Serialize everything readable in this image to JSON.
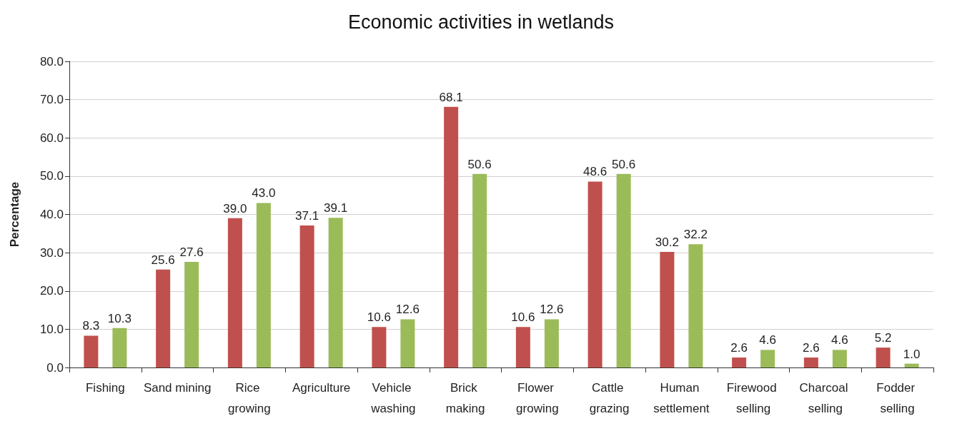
{
  "chart_data": {
    "type": "bar",
    "title": "Economic activities in wetlands",
    "ylabel": "Percentage",
    "categories": [
      "Fishing",
      "Sand mining",
      "Rice growing",
      "Agriculture",
      "Vehicle washing",
      "Brick making",
      "Flower growing",
      "Cattle grazing",
      "Human settlement",
      "Firewood selling",
      "Charcoal selling",
      "Fodder selling"
    ],
    "series": [
      {
        "color": "#c0504d",
        "values": [
          8.3,
          25.6,
          39.0,
          37.1,
          10.6,
          68.1,
          10.6,
          48.6,
          30.2,
          2.6,
          2.6,
          5.2
        ],
        "value_labels": [
          "8.3",
          "25.6",
          "39.0",
          "37.1",
          "10.6",
          "68.1",
          "10.6",
          "48.6",
          "30.2",
          "2.6",
          "2.6",
          "5.2"
        ]
      },
      {
        "color": "#9bbb59",
        "values": [
          10.3,
          27.6,
          43.0,
          39.1,
          12.6,
          50.6,
          12.6,
          50.6,
          32.2,
          4.6,
          4.6,
          1.0
        ],
        "value_labels": [
          "10.3",
          "27.6",
          "43.0",
          "39.1",
          "12.6",
          "50.6",
          "12.6",
          "50.6",
          "32.2",
          "4.6",
          "4.6",
          "1.0"
        ]
      }
    ],
    "ylim": [
      0,
      80
    ],
    "yticks": [
      {
        "value": 0,
        "label": "0.0"
      },
      {
        "value": 10,
        "label": "10.0"
      },
      {
        "value": 20,
        "label": "20.0"
      },
      {
        "value": 30,
        "label": "30.0"
      },
      {
        "value": 40,
        "label": "40.0"
      },
      {
        "value": 50,
        "label": "50.0"
      },
      {
        "value": 60,
        "label": "60.0"
      },
      {
        "value": 70,
        "label": "70.0"
      },
      {
        "value": 80,
        "label": "80.0"
      }
    ],
    "grid": "y"
  }
}
